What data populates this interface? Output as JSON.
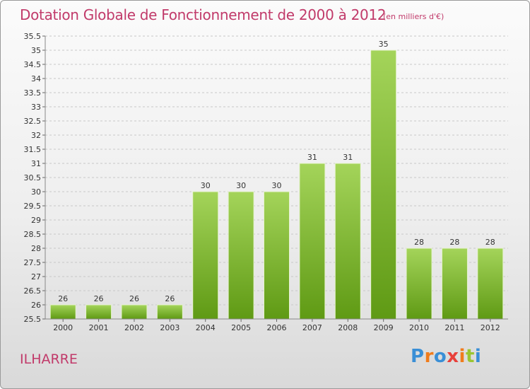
{
  "title": "Dotation Globale de Fonctionnement de 2000 à 2012",
  "subtitle": "(en milliers d'€)",
  "commune": "ILHARRE",
  "logo": {
    "letters": [
      "P",
      "r",
      "o",
      "x",
      "i",
      "t",
      "i"
    ],
    "colors": [
      "#3a8fd6",
      "#f07c1c",
      "#3a8fd6",
      "#e8403a",
      "#f07c1c",
      "#9ac531",
      "#3a8fd6"
    ]
  },
  "colors": {
    "bar_top": "#a4d45a",
    "bar_bottom": "#5f9a14",
    "text_accent": "#c13a6a",
    "grid": "#c8c8c8"
  },
  "chart_data": {
    "type": "bar",
    "categories": [
      "2000",
      "2001",
      "2002",
      "2003",
      "2004",
      "2005",
      "2006",
      "2007",
      "2008",
      "2009",
      "2010",
      "2011",
      "2012"
    ],
    "values": [
      26,
      26,
      26,
      26,
      30,
      30,
      30,
      31,
      31,
      35,
      28,
      28,
      28
    ],
    "ylim": [
      25.5,
      35.5
    ],
    "yticks": [
      "25.5",
      "26",
      "26.5",
      "27",
      "27.5",
      "28",
      "28.5",
      "29",
      "29.5",
      "30",
      "30.5",
      "31",
      "31.5",
      "32",
      "32.5",
      "33",
      "33.5",
      "34",
      "34.5",
      "35",
      "35.5"
    ],
    "grid": "horizontal dashed",
    "legend": "none"
  }
}
